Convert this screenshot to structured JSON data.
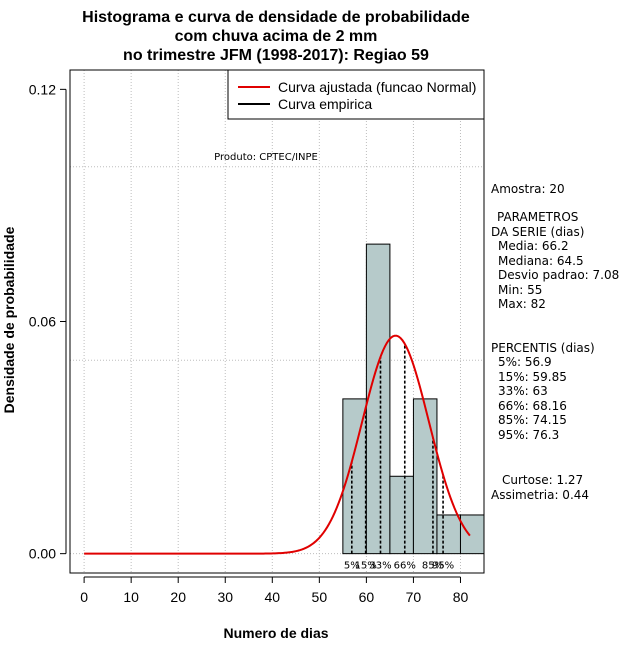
{
  "chart_data": {
    "type": "bar",
    "title": [
      "Histograma e curva de densidade de probabilidade",
      "com chuva acima de 2 mm",
      "no trimestre JFM (1998-2017): Regiao 59"
    ],
    "xlabel": "Numero de dias",
    "ylabel": "Densidade de probabilidade",
    "xlim": [
      -3,
      85
    ],
    "ylim": [
      -0.005,
      0.125
    ],
    "x_ticks": [
      0,
      10,
      20,
      30,
      40,
      50,
      60,
      70,
      80
    ],
    "y_ticks": [
      0.0,
      0.06,
      0.12
    ],
    "y_tick_labels": [
      "0.00",
      "0.06",
      "0.12"
    ],
    "grid": true,
    "h_gridlines": [
      0.0,
      0.05,
      0.1
    ],
    "legend_position": "top-right",
    "legend": [
      {
        "label": "Curva ajustada (funcao Normal)",
        "color": "#e00000"
      },
      {
        "label": "Curva empirica",
        "color": "#000000"
      }
    ],
    "histogram": {
      "bins": [
        {
          "x0": 55,
          "x1": 60,
          "density": 0.04
        },
        {
          "x0": 60,
          "x1": 65,
          "density": 0.08
        },
        {
          "x0": 65,
          "x1": 70,
          "density": 0.02
        },
        {
          "x0": 70,
          "x1": 75,
          "density": 0.04
        },
        {
          "x0": 75,
          "x1": 80,
          "density": 0.01
        },
        {
          "x0": 80,
          "x1": 85,
          "density": 0.01
        }
      ],
      "fill": "#b6caca"
    },
    "normal_curve": {
      "mean": 66.2,
      "sd": 7.08,
      "x_start": 0,
      "x_end": 82,
      "color": "#e00000"
    },
    "percentile_lines": [
      {
        "label": "5%",
        "x": 56.9
      },
      {
        "label": "15%",
        "x": 59.85
      },
      {
        "label": "33%",
        "x": 63
      },
      {
        "label": "66%",
        "x": 68.16
      },
      {
        "label": "85%",
        "x": 74.15
      },
      {
        "label": "95%",
        "x": 76.3
      }
    ],
    "annotation": "Produto: CPTEC/INPE"
  },
  "side_panel": {
    "amostra": "Amostra: 20",
    "params_title_1": "PARAMETROS",
    "params_title_2": "DA SERIE (dias)",
    "params": [
      "Media: 66.2",
      "Mediana: 64.5",
      "Desvio padrao: 7.08",
      "Min: 55",
      "Max: 82"
    ],
    "percentis_title": "PERCENTIS (dias)",
    "percentis": [
      "5%: 56.9",
      "15%: 59.85",
      "33%: 63",
      "66%: 68.16",
      "85%: 74.15",
      "95%: 76.3"
    ],
    "curtose": "Curtose: 1.27",
    "assimetria": "Assimetria: 0.44"
  }
}
